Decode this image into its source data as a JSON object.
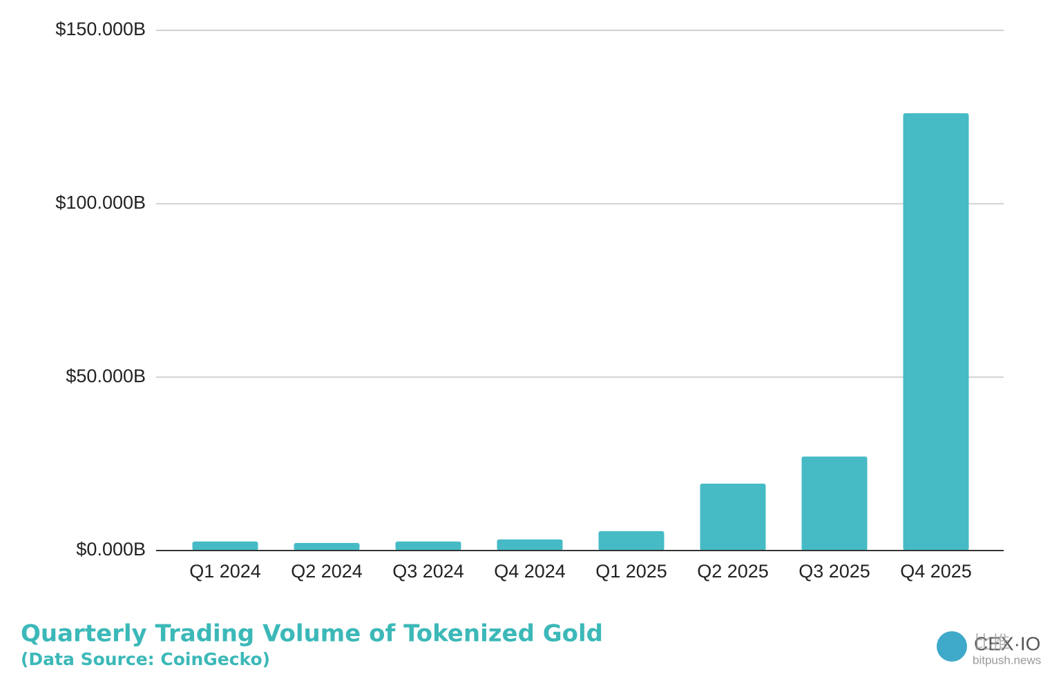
{
  "chart_data": {
    "type": "bar",
    "title": "Quarterly Trading Volume of Tokenized Gold",
    "subtitle": "(Data Source: CoinGecko)",
    "categories": [
      "Q1 2024",
      "Q2 2024",
      "Q3 2024",
      "Q4 2024",
      "Q1 2025",
      "Q2 2025",
      "Q3 2025",
      "Q4 2025"
    ],
    "values": [
      2.6,
      2.2,
      2.6,
      3.2,
      5.6,
      19.3,
      27.1,
      126.1
    ],
    "color": "#46bbc5",
    "ylim": [
      0,
      150
    ],
    "yticks": [
      {
        "value": 0,
        "label": "$0.000B"
      },
      {
        "value": 50,
        "label": "$50.000B"
      },
      {
        "value": 100,
        "label": "$100.000B"
      },
      {
        "value": 150,
        "label": "$150.000B"
      }
    ],
    "grid": true,
    "brand": "CEX·IO",
    "watermark": [
      "比推",
      "bitpush.news"
    ]
  }
}
